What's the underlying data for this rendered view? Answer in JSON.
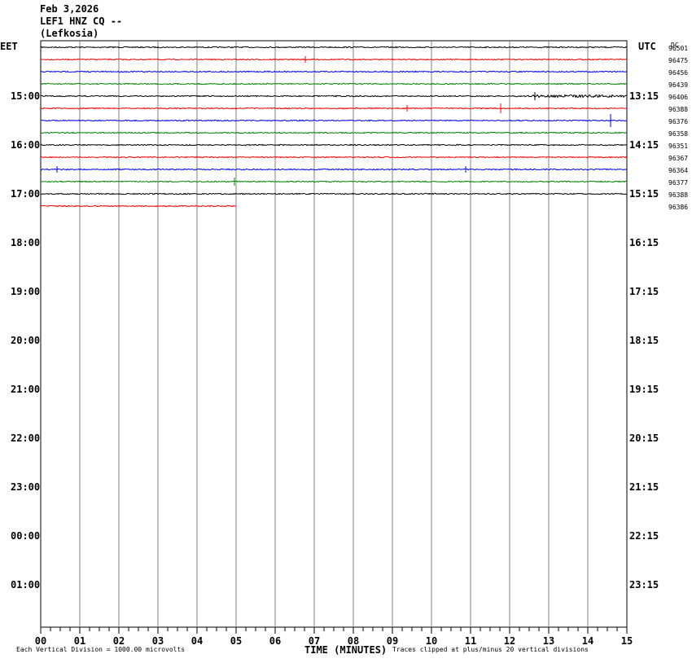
{
  "header": {
    "date": "Feb 3,2026",
    "station": "LEF1 HNZ CQ --",
    "location": "(Lefkosia)"
  },
  "corner_right": "DC",
  "footer": {
    "division_note": "Each Vertical Division = 1000.00 microvolts",
    "xaxis_title": "TIME (MINUTES)",
    "clip_note": "Traces clipped at plus/minus 20 vertical divisions"
  },
  "colors": {
    "trace_cycle": [
      "#000000",
      "#ff0000",
      "#0000ff",
      "#008000"
    ],
    "grid": "#808080"
  },
  "chart_data": {
    "type": "line",
    "title": "",
    "xlabel": "TIME (MINUTES)",
    "xlim": [
      0,
      15
    ],
    "x_ticks": [
      "00",
      "01",
      "02",
      "03",
      "04",
      "05",
      "06",
      "07",
      "08",
      "09",
      "10",
      "11",
      "12",
      "13",
      "14",
      "15"
    ],
    "left_axis_title": "EET",
    "right_axis_title": "UTC",
    "hour_labels_left": [
      "15:00",
      "16:00",
      "17:00",
      "18:00",
      "19:00",
      "20:00",
      "21:00",
      "22:00",
      "23:00",
      "00:00",
      "01:00"
    ],
    "hour_labels_right": [
      "13:15",
      "14:15",
      "15:15",
      "16:15",
      "17:15",
      "18:15",
      "19:15",
      "20:15",
      "21:15",
      "22:15",
      "23:15"
    ],
    "rows_total": 48,
    "traces": [
      {
        "row": 0,
        "color": "#000000",
        "offset": "96501",
        "end_min": 15
      },
      {
        "row": 1,
        "color": "#ff0000",
        "offset": "96475",
        "end_min": 15
      },
      {
        "row": 2,
        "color": "#0000ff",
        "offset": "96456",
        "end_min": 15
      },
      {
        "row": 3,
        "color": "#008000",
        "offset": "96439",
        "end_min": 15
      },
      {
        "row": 4,
        "color": "#000000",
        "offset": "96406",
        "end_min": 15
      },
      {
        "row": 5,
        "color": "#ff0000",
        "offset": "96388",
        "end_min": 15
      },
      {
        "row": 6,
        "color": "#0000ff",
        "offset": "96376",
        "end_min": 15
      },
      {
        "row": 7,
        "color": "#008000",
        "offset": "96358",
        "end_min": 15
      },
      {
        "row": 8,
        "color": "#000000",
        "offset": "96351",
        "end_min": 15
      },
      {
        "row": 9,
        "color": "#ff0000",
        "offset": "96367",
        "end_min": 15
      },
      {
        "row": 10,
        "color": "#0000ff",
        "offset": "96364",
        "end_min": 15
      },
      {
        "row": 11,
        "color": "#008000",
        "offset": "96377",
        "end_min": 15
      },
      {
        "row": 12,
        "color": "#000000",
        "offset": "96388",
        "end_min": 15
      },
      {
        "row": 13,
        "color": "#ff0000",
        "offset": "96386",
        "end_min": 5
      }
    ]
  }
}
